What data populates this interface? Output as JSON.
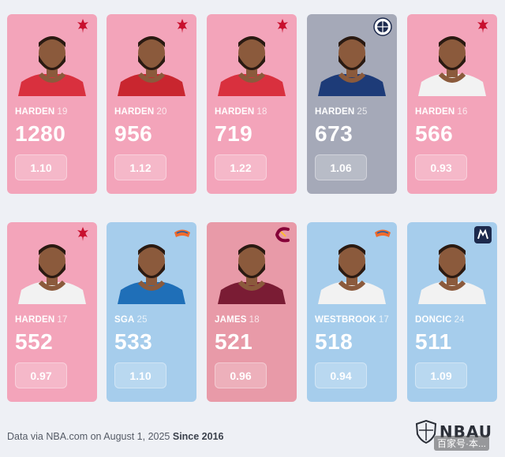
{
  "cards": [
    {
      "name": "HARDEN",
      "age": "19",
      "total": "1280",
      "ratio": "1.10",
      "team_logo": "rockets-logo",
      "jersey": "#d9303e",
      "theme": "pink"
    },
    {
      "name": "HARDEN",
      "age": "20",
      "total": "956",
      "ratio": "1.12",
      "team_logo": "rockets-logo",
      "jersey": "#c9262f",
      "theme": "pink"
    },
    {
      "name": "HARDEN",
      "age": "18",
      "total": "719",
      "ratio": "1.22",
      "team_logo": "rockets-logo",
      "jersey": "#d9303e",
      "theme": "pink"
    },
    {
      "name": "HARDEN",
      "age": "25",
      "total": "673",
      "ratio": "1.06",
      "team_logo": "nets-logo",
      "jersey": "#1d3b78",
      "theme": "gray"
    },
    {
      "name": "HARDEN",
      "age": "16",
      "total": "566",
      "ratio": "0.93",
      "team_logo": "rockets-logo",
      "jersey": "#f2f2f2",
      "theme": "pink"
    },
    {
      "name": "HARDEN",
      "age": "17",
      "total": "552",
      "ratio": "0.97",
      "team_logo": "rockets-logo",
      "jersey": "#f2f2f2",
      "theme": "pink"
    },
    {
      "name": "SGA",
      "age": "25",
      "total": "533",
      "ratio": "1.10",
      "team_logo": "thunder-logo",
      "jersey": "#1f6fb8",
      "theme": "blue"
    },
    {
      "name": "JAMES",
      "age": "18",
      "total": "521",
      "ratio": "0.96",
      "team_logo": "cavaliers-logo",
      "jersey": "#7a1c34",
      "theme": "maroon"
    },
    {
      "name": "WESTBROOK",
      "age": "17",
      "total": "518",
      "ratio": "0.94",
      "team_logo": "thunder-logo",
      "jersey": "#f2f2f2",
      "theme": "blue"
    },
    {
      "name": "DONCIC",
      "age": "24",
      "total": "511",
      "ratio": "1.09",
      "team_logo": "mavericks-logo",
      "jersey": "#f2f2f2",
      "theme": "blue"
    }
  ],
  "footer": {
    "source": "Data via NBA.com on August 1, 2025 ",
    "since": "Since 2016"
  },
  "brand": {
    "name": "NBAU",
    "watermark": "百家号·本..."
  }
}
